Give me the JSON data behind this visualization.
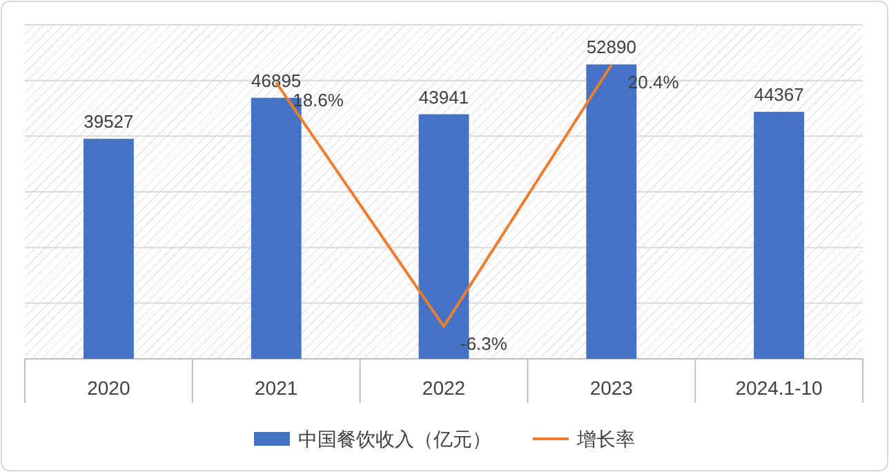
{
  "chart_data": {
    "type": "bar",
    "categories": [
      "2020",
      "2021",
      "2022",
      "2023",
      "2024.1-10"
    ],
    "series": [
      {
        "name": "中国餐饮收入（亿元）",
        "color": "#4472c4",
        "values": [
          39527,
          46895,
          43941,
          52890,
          44367
        ],
        "value_labels": [
          "39527",
          "46895",
          "43941",
          "52890",
          "44367"
        ]
      },
      {
        "name": "增长率",
        "type": "line",
        "axis": "y2",
        "color": "#ed7d31",
        "values": [
          null,
          18.6,
          -6.3,
          20.4,
          null
        ],
        "value_labels": [
          null,
          "18.6%",
          "-6.3%",
          "20.4%",
          null
        ]
      }
    ],
    "ylim": [
      0,
      60000
    ],
    "yticks": [
      {
        "value": 0,
        "label": null
      },
      {
        "value": 10000,
        "label": null
      },
      {
        "value": 20000,
        "label": null
      },
      {
        "value": 30000,
        "label": null
      },
      {
        "value": 40000,
        "label": null
      },
      {
        "value": 50000,
        "label": null
      },
      {
        "value": 60000,
        "label": null
      }
    ],
    "y2lim": [
      -9.6,
      24.5
    ],
    "tick_labels": "x",
    "grid": "y",
    "legend": "bottom"
  }
}
